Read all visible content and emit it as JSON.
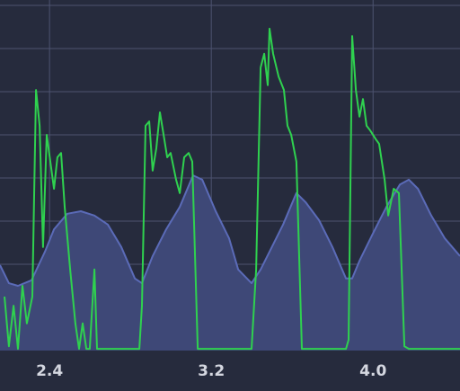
{
  "chart_data": {
    "type": "line",
    "xlim": [
      2.155,
      4.43
    ],
    "ylim": [
      0,
      8.125
    ],
    "xticks": [
      2.4,
      3.2,
      {
        "value": 4,
        "label": "4.0"
      }
    ],
    "yticks": [
      1,
      2,
      3,
      4,
      5,
      6,
      7,
      8
    ],
    "grid": true,
    "background": "#262b3d",
    "series": [
      {
        "color": "#5b6bb8",
        "fill_color": "#3e4877",
        "fill": true,
        "x": [
          2.155,
          2.199,
          2.244,
          2.311,
          2.377,
          2.422,
          2.488,
          2.555,
          2.622,
          2.688,
          2.755,
          2.822,
          2.857,
          2.91,
          2.977,
          3.044,
          3.11,
          3.155,
          3.222,
          3.288,
          3.333,
          3.399,
          3.444,
          3.488,
          3.555,
          3.621,
          3.666,
          3.733,
          3.799,
          3.866,
          3.897,
          3.933,
          3.999,
          4.066,
          4.133,
          4.177,
          4.222,
          4.288,
          4.355,
          4.43
        ],
        "values": [
          1.98,
          1.56,
          1.5,
          1.63,
          2.29,
          2.81,
          3.17,
          3.23,
          3.13,
          2.92,
          2.4,
          1.67,
          1.56,
          2.19,
          2.81,
          3.33,
          4.06,
          3.96,
          3.23,
          2.6,
          1.88,
          1.56,
          1.88,
          2.29,
          2.92,
          3.65,
          3.44,
          3.02,
          2.4,
          1.67,
          1.67,
          2.08,
          2.71,
          3.33,
          3.85,
          3.96,
          3.75,
          3.13,
          2.6,
          2.19
        ]
      },
      {
        "color": "#2fd14f",
        "fill": false,
        "x": [
          2.177,
          2.199,
          2.222,
          2.244,
          2.266,
          2.288,
          2.315,
          2.333,
          2.351,
          2.368,
          2.386,
          2.404,
          2.422,
          2.439,
          2.457,
          2.475,
          2.502,
          2.528,
          2.546,
          2.564,
          2.582,
          2.599,
          2.622,
          2.635,
          2.844,
          2.857,
          2.875,
          2.893,
          2.91,
          2.928,
          2.946,
          2.964,
          2.982,
          2.999,
          3.026,
          3.044,
          3.066,
          3.088,
          3.106,
          3.133,
          3.399,
          3.422,
          3.444,
          3.462,
          3.479,
          3.488,
          3.506,
          3.533,
          3.559,
          3.577,
          3.595,
          3.621,
          3.648,
          3.866,
          3.879,
          3.897,
          3.915,
          3.933,
          3.95,
          3.968,
          3.986,
          4.013,
          4.03,
          4.057,
          4.075,
          4.102,
          4.128,
          4.155,
          4.177,
          4.43
        ],
        "values": [
          1.25,
          0.1,
          1.04,
          0.04,
          1.5,
          0.63,
          1.25,
          6.04,
          5.21,
          2.4,
          5,
          4.38,
          3.75,
          4.48,
          4.58,
          3.33,
          1.88,
          0.63,
          0.04,
          0.63,
          0.04,
          0.04,
          1.88,
          0.04,
          0.04,
          1.04,
          5.21,
          5.31,
          4.17,
          4.69,
          5.52,
          5,
          4.48,
          4.58,
          3.96,
          3.65,
          4.48,
          4.58,
          4.38,
          0.04,
          0.04,
          1.88,
          6.56,
          6.88,
          6.15,
          7.46,
          6.88,
          6.35,
          6.04,
          5.21,
          5,
          4.38,
          0.04,
          0.04,
          0.25,
          7.29,
          6.04,
          5.42,
          5.83,
          5.21,
          5.1,
          4.9,
          4.79,
          3.96,
          3.13,
          3.75,
          3.65,
          0.1,
          0.04,
          0.04
        ]
      }
    ]
  }
}
